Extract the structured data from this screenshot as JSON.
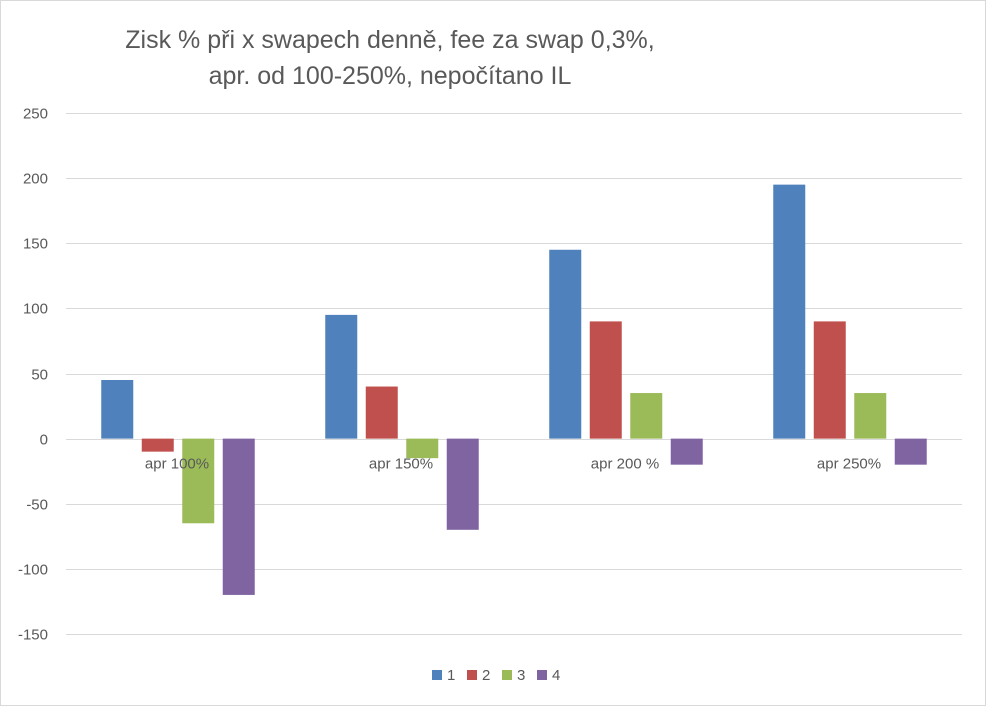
{
  "chart_data": {
    "type": "bar",
    "title": [
      "Zisk % při x swapech denně, fee za swap 0,3%,",
      "apr. od 100-250%, nepočítano IL"
    ],
    "categories": [
      "apr 100%",
      "apr 150%",
      "apr 200 %",
      "apr 250%"
    ],
    "series": [
      {
        "name": "1",
        "color": "#4f81bd",
        "values": [
          45,
          95,
          145,
          195
        ]
      },
      {
        "name": "2",
        "color": "#c0504d",
        "values": [
          -10,
          40,
          90,
          90
        ]
      },
      {
        "name": "3",
        "color": "#9bbb59",
        "values": [
          -65,
          -15,
          35,
          35
        ]
      },
      {
        "name": "4",
        "color": "#8064a2",
        "values": [
          -120,
          -70,
          -20,
          -20
        ]
      }
    ],
    "ylim": [
      -150,
      250
    ],
    "yticks": [
      250,
      200,
      150,
      100,
      50,
      0,
      -50,
      -100,
      -150
    ],
    "ytick_labels": [
      "250",
      "200",
      "150",
      "100",
      "50",
      "0",
      "-50",
      "-100",
      "-150"
    ],
    "grid": true,
    "legend": "bottom",
    "xlabel": "",
    "ylabel": ""
  }
}
